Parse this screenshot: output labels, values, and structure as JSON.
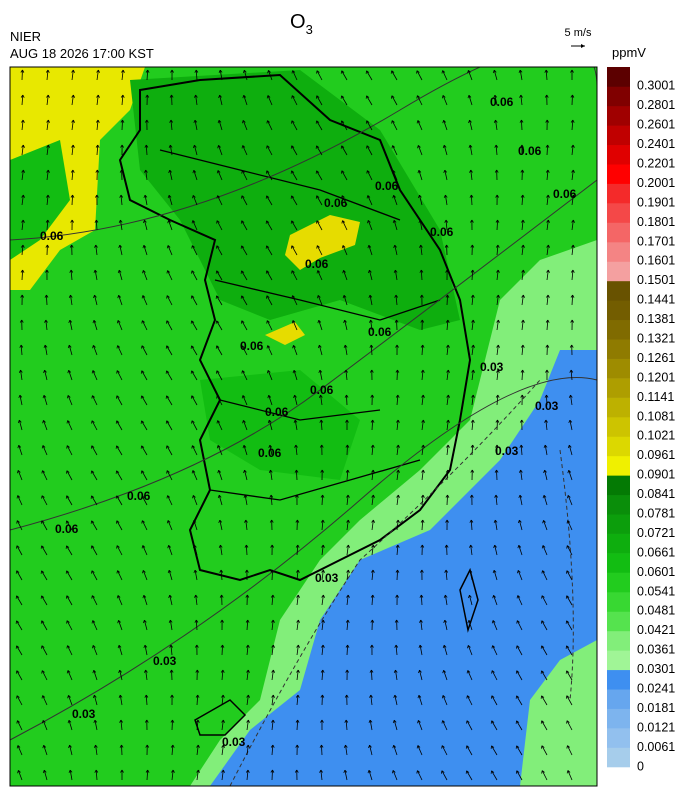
{
  "header": {
    "agency": "NIER",
    "datetime": "AUG 18 2026 17:00 KST",
    "title": {
      "main": "O",
      "subscript": "3"
    },
    "wind_reference": "5 m/s"
  },
  "colorbar": {
    "unit": "ppmV",
    "levels": [
      0,
      0.0061,
      0.0121,
      0.0181,
      0.0241,
      0.0301,
      0.0361,
      0.0421,
      0.0481,
      0.0541,
      0.0601,
      0.0661,
      0.0721,
      0.0781,
      0.0841,
      0.0901,
      0.0961,
      0.1021,
      0.1081,
      0.1141,
      0.1201,
      0.1261,
      0.1321,
      0.1381,
      0.1441,
      0.1501,
      0.1601,
      0.1701,
      0.1801,
      0.1901,
      0.2001,
      0.2201,
      0.2401,
      0.2601,
      0.2801,
      0.3001
    ],
    "colors": [
      "#a6cdeb",
      "#92c0ee",
      "#7db4ee",
      "#66a6ee",
      "#3e8ff0",
      "#a0f596",
      "#82ee7a",
      "#55e34e",
      "#38d832",
      "#22cc1e",
      "#12bd12",
      "#0eae0e",
      "#0c9e0c",
      "#0a8e0a",
      "#047a04",
      "#f0f000",
      "#dcd800",
      "#cdc400",
      "#bdb100",
      "#ae9e00",
      "#9e8c00",
      "#8f7b00",
      "#806b00",
      "#735d00",
      "#685200",
      "#f4a0a0",
      "#f48484",
      "#f46666",
      "#f44848",
      "#f42a2a",
      "#ff0000",
      "#e00000",
      "#c00000",
      "#a00000",
      "#800000",
      "#5c0000"
    ]
  },
  "contour_labels": [
    "0.06",
    "0.06",
    "0.06",
    "0.06",
    "0.06",
    "0.06",
    "0.06",
    "0.06",
    "0.06",
    "0.06",
    "0.06",
    "0.06",
    "0.06",
    "0.06",
    "0.06",
    "0.03",
    "0.03",
    "0.03",
    "0.03",
    "0.03",
    "0.03",
    "0.03"
  ]
}
